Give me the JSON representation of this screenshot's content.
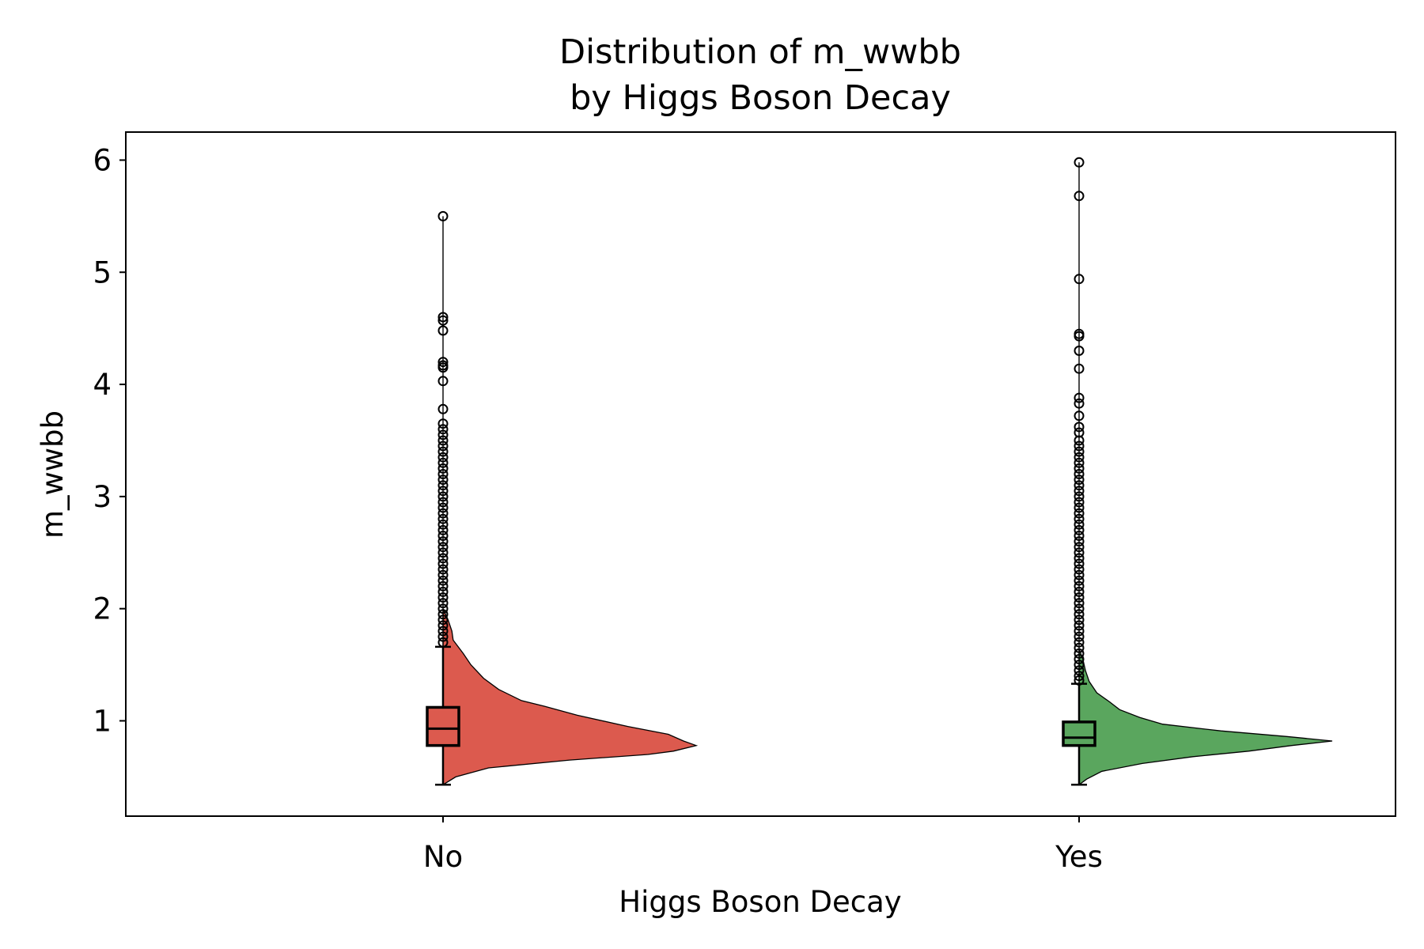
{
  "chart_data": {
    "type": "violin",
    "title_line1": "Distribution of m_wwbb",
    "title_line2": "by Higgs Boson Decay",
    "xlabel": "Higgs Boson Decay",
    "ylabel": "m_wwbb",
    "categories": [
      "No",
      "Yes"
    ],
    "ylim": [
      0.15,
      6.25
    ],
    "yticks": [
      1,
      2,
      3,
      4,
      5,
      6
    ],
    "ytick_labels": [
      "1",
      "2",
      "3",
      "4",
      "5",
      "6"
    ],
    "grid": false,
    "series": [
      {
        "category": "No",
        "color": "#dc5a4e",
        "box": {
          "q1": 0.78,
          "median": 0.93,
          "q3": 1.12,
          "whisker_low": 0.43,
          "whisker_high": 1.66
        },
        "density_profile": [
          [
            0.43,
            0.0
          ],
          [
            0.5,
            0.05
          ],
          [
            0.58,
            0.18
          ],
          [
            0.65,
            0.5
          ],
          [
            0.7,
            0.81
          ],
          [
            0.73,
            0.91
          ],
          [
            0.78,
            1.0
          ],
          [
            0.82,
            0.95
          ],
          [
            0.88,
            0.89
          ],
          [
            0.95,
            0.73
          ],
          [
            1.05,
            0.53
          ],
          [
            1.13,
            0.4
          ],
          [
            1.18,
            0.31
          ],
          [
            1.28,
            0.22
          ],
          [
            1.38,
            0.16
          ],
          [
            1.5,
            0.11
          ],
          [
            1.6,
            0.08
          ],
          [
            1.72,
            0.04
          ],
          [
            1.8,
            0.035
          ],
          [
            1.9,
            0.02
          ],
          [
            2.0,
            0.0
          ]
        ],
        "outliers": [
          5.5,
          4.6,
          4.57,
          4.48,
          4.2,
          4.17,
          4.15,
          4.03,
          3.78,
          3.65,
          3.6,
          3.55,
          3.5,
          3.45,
          3.4,
          3.35,
          3.3,
          3.25,
          3.2,
          3.15,
          3.1,
          3.05,
          3.0,
          2.95,
          2.9,
          2.85,
          2.8,
          2.75,
          2.7,
          2.65,
          2.6,
          2.55,
          2.5,
          2.45,
          2.4,
          2.35,
          2.3,
          2.25,
          2.2,
          2.15,
          2.1,
          2.05,
          2.0,
          1.95,
          1.9,
          1.85,
          1.8,
          1.75,
          1.7
        ]
      },
      {
        "category": "Yes",
        "color": "#5aa65e",
        "box": {
          "q1": 0.78,
          "median": 0.85,
          "q3": 0.99,
          "whisker_low": 0.43,
          "whisker_high": 1.33
        },
        "density_profile": [
          [
            0.43,
            0.0
          ],
          [
            0.48,
            0.03
          ],
          [
            0.55,
            0.09
          ],
          [
            0.62,
            0.25
          ],
          [
            0.68,
            0.45
          ],
          [
            0.73,
            0.67
          ],
          [
            0.78,
            0.84
          ],
          [
            0.82,
            1.0
          ],
          [
            0.86,
            0.82
          ],
          [
            0.91,
            0.56
          ],
          [
            0.97,
            0.33
          ],
          [
            1.03,
            0.24
          ],
          [
            1.1,
            0.16
          ],
          [
            1.17,
            0.12
          ],
          [
            1.25,
            0.07
          ],
          [
            1.35,
            0.04
          ],
          [
            1.45,
            0.025
          ],
          [
            1.55,
            0.015
          ],
          [
            1.64,
            0.0
          ]
        ],
        "outliers": [
          5.98,
          5.68,
          4.94,
          4.45,
          4.43,
          4.3,
          4.14,
          3.88,
          3.83,
          3.72,
          3.62,
          3.57,
          3.5,
          3.45,
          3.4,
          3.35,
          3.3,
          3.25,
          3.2,
          3.15,
          3.1,
          3.05,
          3.0,
          2.95,
          2.9,
          2.85,
          2.8,
          2.75,
          2.7,
          2.65,
          2.6,
          2.55,
          2.5,
          2.45,
          2.4,
          2.35,
          2.3,
          2.25,
          2.2,
          2.15,
          2.1,
          2.05,
          2.0,
          1.95,
          1.9,
          1.85,
          1.8,
          1.75,
          1.7,
          1.65,
          1.6,
          1.55,
          1.5,
          1.45,
          1.4,
          1.36
        ]
      }
    ]
  }
}
